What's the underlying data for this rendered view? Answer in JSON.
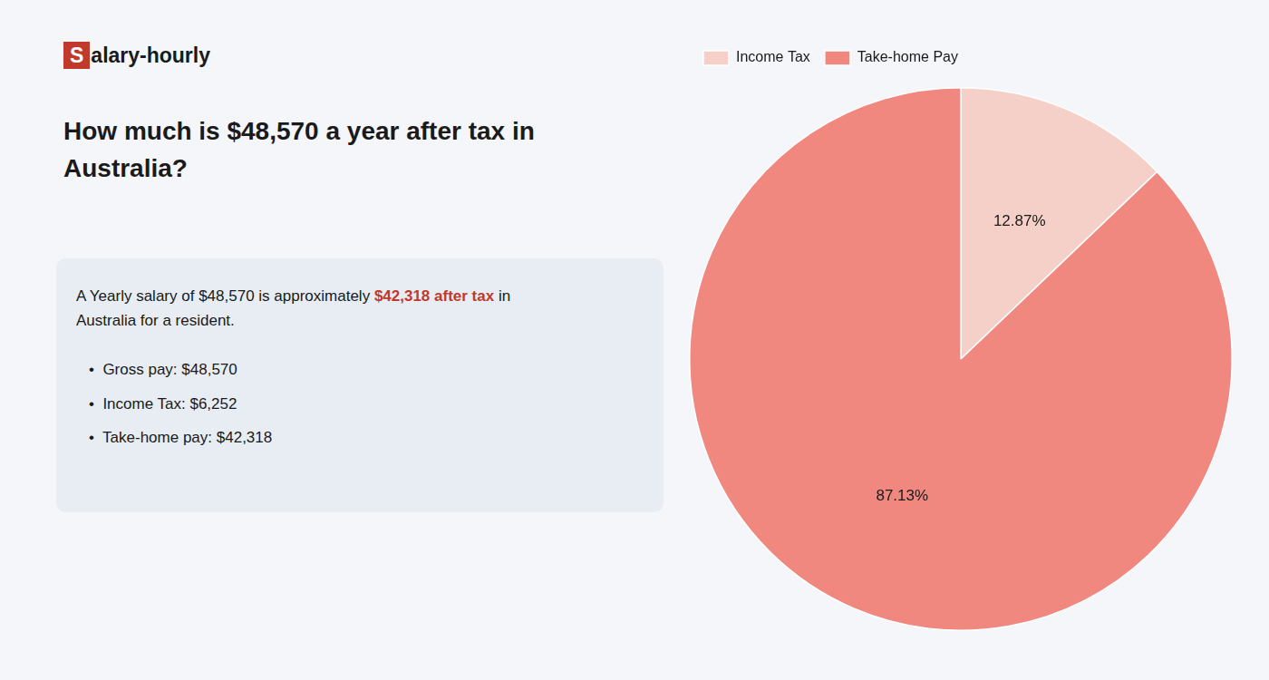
{
  "chart_data": {
    "type": "pie",
    "title": [
      "How much is $48,570 a year after tax in",
      "Australia?"
    ],
    "categories": [
      "Income Tax",
      "Take-home Pay"
    ],
    "values": [
      12.87,
      87.13
    ],
    "value_labels": [
      "12.87%",
      "87.13%"
    ],
    "colors": [
      "#f5d0c8",
      "#f08880"
    ],
    "data_labels": true,
    "legend": "top left",
    "annotations": [
      {
        "text": "S",
        "color": "#c0392b"
      },
      {
        "text": "alary-hourly"
      },
      {
        "text": "A Yearly salary of $48,570 is approximately "
      },
      {
        "text": "$42,318 after tax",
        "color": "#c0392b"
      },
      {
        "text": " in"
      },
      {
        "text": "Australia for a resident."
      },
      {
        "text": "•  Gross pay: $48,570"
      },
      {
        "text": "•  Income Tax: $6,252"
      },
      {
        "text": "•  Take-home pay: $42,318"
      }
    ]
  }
}
